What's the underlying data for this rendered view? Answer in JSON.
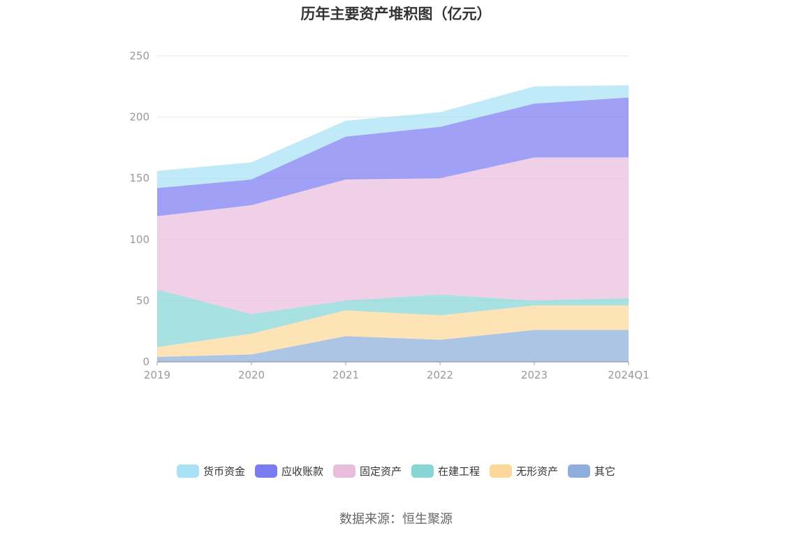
{
  "chart_data": {
    "type": "area",
    "stacked": true,
    "title": "历年主要资产堆积图（亿元）",
    "categories": [
      "2019",
      "2020",
      "2021",
      "2022",
      "2023",
      "2024Q1"
    ],
    "ylim": [
      0,
      250
    ],
    "yticks": [
      "0",
      "50",
      "100",
      "150",
      "200",
      "250"
    ],
    "grid": true,
    "legend_position": "bottom",
    "series": [
      {
        "name": "其它",
        "color": "#8eaedb",
        "values": [
          4,
          6,
          21,
          18,
          26,
          26
        ]
      },
      {
        "name": "无形资产",
        "color": "#fdd89b",
        "values": [
          8,
          17,
          21,
          20,
          20,
          20
        ]
      },
      {
        "name": "在建工程",
        "color": "#86d6d6",
        "values": [
          47,
          16,
          8,
          17,
          4,
          6
        ]
      },
      {
        "name": "固定资产",
        "color": "#e9bedd",
        "values": [
          60,
          89,
          99,
          95,
          117,
          115
        ]
      },
      {
        "name": "应收账款",
        "color": "#7b7cf2",
        "values": [
          23,
          21,
          35,
          42,
          44,
          49
        ]
      },
      {
        "name": "货币资金",
        "color": "#a9e2f7",
        "values": [
          14,
          14,
          13,
          12,
          14,
          10
        ]
      }
    ],
    "legend_order": [
      "货币资金",
      "应收账款",
      "固定资产",
      "在建工程",
      "无形资产",
      "其它"
    ]
  },
  "source_note": "数据来源：恒生聚源"
}
